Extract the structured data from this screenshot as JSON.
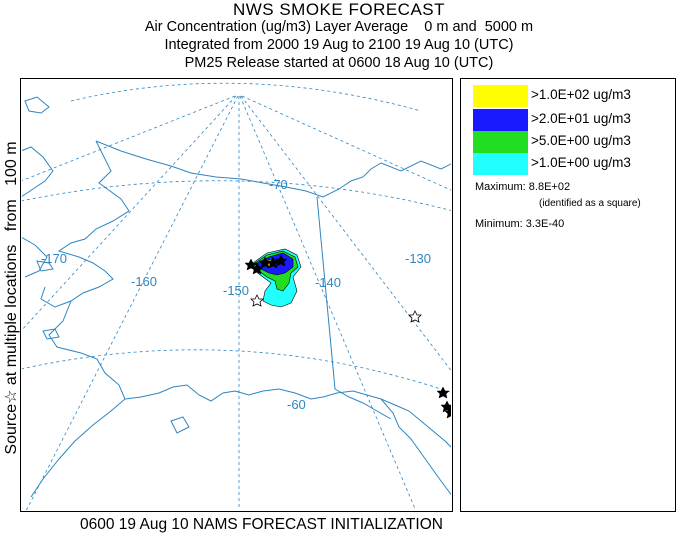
{
  "header": {
    "title": "NWS SMOKE FORECAST",
    "line2": "Air Concentration (ug/m3) Layer Average    0 m and  5000 m",
    "line3": "Integrated from 2000 19 Aug to 2100 19 Aug 10 (UTC)",
    "line4": "PM25 Release started at 0600 18 Aug 10 (UTC)"
  },
  "side_label": "Source☆ at multiple locations   from   100 m",
  "map": {
    "graticule_labels": [
      "-170",
      "-160",
      "-150",
      "-140",
      "-130",
      "-70",
      "-60"
    ],
    "colors": {
      "coast": "#2e86c1",
      "graticule": "#2e86c1",
      "border": "#2e86c1"
    }
  },
  "legend": {
    "entries": [
      {
        "label": ">1.0E+02 ug/m3",
        "color": "#ffff00"
      },
      {
        "label": ">2.0E+01 ug/m3",
        "color": "#1a1aff"
      },
      {
        "label": ">5.0E+00 ug/m3",
        "color": "#22dd22"
      },
      {
        "label": ">1.0E+00 ug/m3",
        "color": "#22ffff"
      }
    ],
    "maximum_label": "Maximum: 8.8E+02",
    "maximum_note": "(identified as a square)",
    "minimum_label": "Minimum: 3.3E-40"
  },
  "footer": "0600 19 Aug 10 NAMS FORECAST INITIALIZATION"
}
